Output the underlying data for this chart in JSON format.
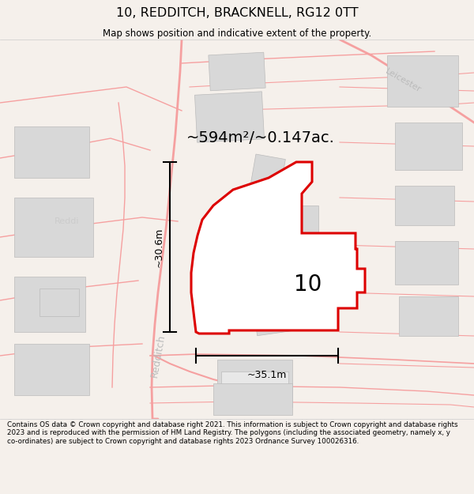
{
  "title": "10, REDDITCH, BRACKNELL, RG12 0TT",
  "subtitle": "Map shows position and indicative extent of the property.",
  "area_label": "~594m²/~0.147ac.",
  "plot_number": "10",
  "dim_width": "~35.1m",
  "dim_height": "~30.6m",
  "footer": "Contains OS data © Crown copyright and database right 2021. This information is subject to Crown copyright and database rights 2023 and is reproduced with the permission of HM Land Registry. The polygons (including the associated geometry, namely x, y co-ordinates) are subject to Crown copyright and database rights 2023 Ordnance Survey 100026316.",
  "bg_color": "#f5f0eb",
  "map_bg": "#ffffff",
  "road_color": "#f5a0a0",
  "road_lw": 1.0,
  "building_color": "#d8d8d8",
  "building_edge": "#bbbbbb",
  "street_redditch": "Redditch",
  "street_reddi_partial": "Reddi",
  "street_leicester": "Leicester",
  "plot_fill": "#ffffff",
  "plot_edge": "#dd0000",
  "plot_lw": 2.2,
  "dim_color": "#000000",
  "text_color": "#000000",
  "label_color": "#bbbbbb"
}
